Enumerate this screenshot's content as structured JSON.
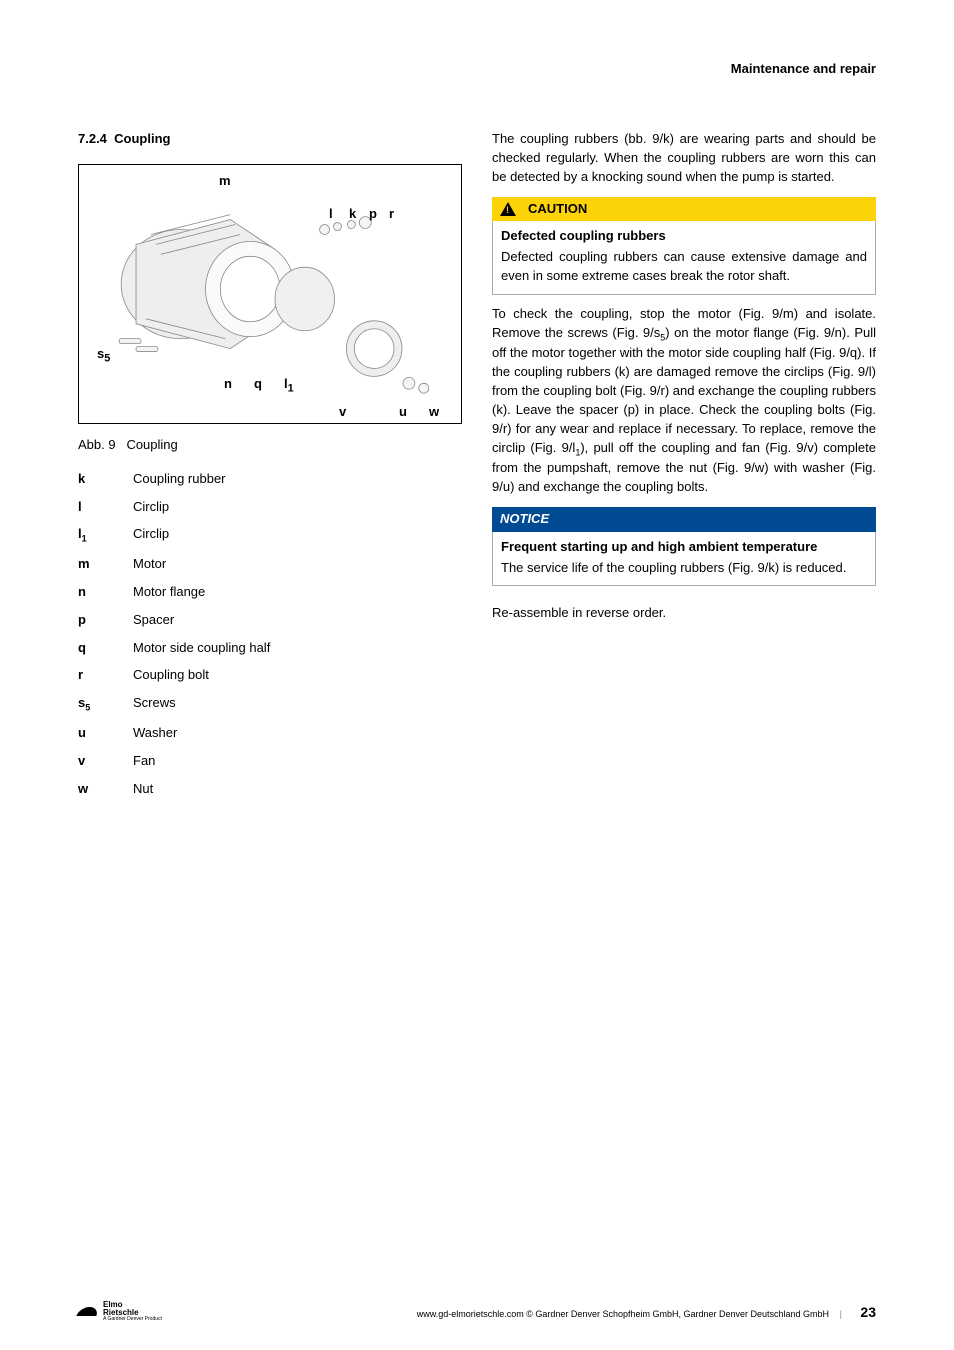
{
  "header": {
    "section": "Maintenance and repair"
  },
  "section": {
    "number": "7.2.4",
    "title": "Coupling"
  },
  "figure": {
    "caption_prefix": "Abb. 9",
    "caption_title": "Coupling",
    "labels": {
      "m": "m",
      "l": "l",
      "k": "k",
      "p": "p",
      "r": "r",
      "s5": "s",
      "s5_sub": "5",
      "n": "n",
      "q": "q",
      "l1": "l",
      "l1_sub": "1",
      "v": "v",
      "u": "u",
      "w": "w"
    }
  },
  "legend": [
    {
      "key": "k",
      "label": "Coupling rubber"
    },
    {
      "key": "l",
      "label": "Circlip"
    },
    {
      "key": "l",
      "sub": "1",
      "label": "Circlip"
    },
    {
      "key": "m",
      "label": "Motor"
    },
    {
      "key": "n",
      "label": "Motor flange"
    },
    {
      "key": "p",
      "label": "Spacer"
    },
    {
      "key": "q",
      "label": "Motor side coupling half"
    },
    {
      "key": "r",
      "label": "Coupling bolt"
    },
    {
      "key": "s",
      "sub": "5",
      "label": "Screws"
    },
    {
      "key": "u",
      "label": "Washer"
    },
    {
      "key": "v",
      "label": "Fan"
    },
    {
      "key": "w",
      "label": "Nut"
    }
  ],
  "right": {
    "intro": "The coupling rubbers (bb. 9/k) are wearing parts and should be checked regularly. When the coupling rubbers are worn this can be detected by a knocking sound when the pump is started.",
    "caution": {
      "header": "CAUTION",
      "title": "Defected coupling rubbers",
      "body": "Defected coupling rubbers can cause extensive damage and even in some extreme cases break the rotor shaft."
    },
    "instructions_pre": "To check the coupling, stop the motor (Fig. 9/m) and isolate. Remove the screws (Fig. 9/s",
    "instructions_mid1": ") on the motor flange (Fig. 9/n). Pull off the motor together with the motor side coupling half (Fig. 9/q). If the coupling rubbers (k) are damaged remove the circlips (Fig. 9/l) from the coupling bolt (Fig. 9/r) and exchange the coupling rubbers (k). Leave the spacer (p) in place. Check the coupling bolts (Fig. 9/r) for any wear and replace if necessary. To replace, remove the circlip (Fig. 9/l",
    "instructions_mid2": "), pull off the coupling and fan (Fig. 9/v) complete from the pumpshaft, remove the nut (Fig. 9/w) with washer (Fig. 9/u) and exchange the coupling bolts.",
    "s5_sub": "5",
    "l1_sub": "1",
    "notice": {
      "header": "NOTICE",
      "title": "Frequent starting up and high ambient temperature",
      "body": "The service life of the coupling rubbers (Fig. 9/k) is reduced."
    },
    "reassemble": "Re-assemble in reverse order."
  },
  "footer": {
    "brand1": "Elmo",
    "brand2": "Rietschle",
    "brand_sub": "A Gardner Denver Product",
    "copy": "www.gd-elmorietschle.com © Gardner Denver Schopfheim GmbH, Gardner Denver Deutschland GmbH",
    "page": "23"
  },
  "colors": {
    "caution_bg": "#fcd306",
    "notice_bg": "#004b93",
    "text": "#000000",
    "border_grey": "#a9a9a9"
  }
}
